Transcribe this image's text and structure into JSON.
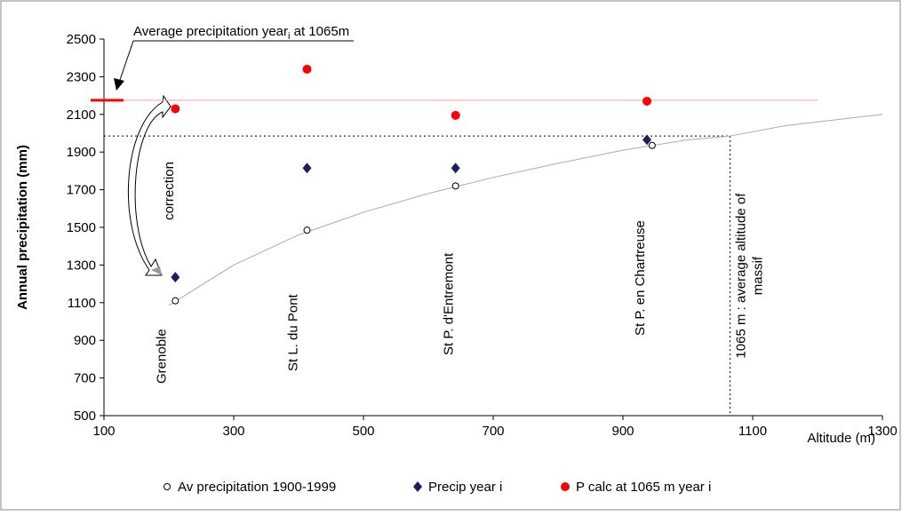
{
  "chart_data": {
    "type": "scatter",
    "annotation_title": {
      "text": "Average precipitation year",
      "subscript": "i",
      "suffix": " at 1065m"
    },
    "y_label": "Annual precipitation (mm)",
    "x_label": "Altitude (m)",
    "correction_label": "correction",
    "reference_label": [
      "1065 m : average altitude of",
      "massif"
    ],
    "reference_altitude": 1065,
    "reference_precip": 1985,
    "year_average_precip": 2175,
    "year_average_line_end": 1200,
    "xlim": [
      100,
      1300
    ],
    "xticks": [
      100,
      300,
      500,
      700,
      900,
      1100,
      1300
    ],
    "ylim": [
      500,
      2500
    ],
    "yticks": [
      500,
      700,
      900,
      1100,
      1300,
      1500,
      1700,
      1900,
      2100,
      2300,
      2500
    ],
    "grid": false,
    "stations": [
      {
        "label": "Grenoble",
        "x": 210
      },
      {
        "label": "St L. du Pont",
        "x": 413
      },
      {
        "label": "St P. d'Entremont",
        "x": 642
      },
      {
        "label": "St P. en Chartreuse",
        "x": 940
      }
    ],
    "trendline": {
      "x": [
        200,
        300,
        400,
        500,
        600,
        700,
        800,
        900,
        1000,
        1065,
        1150,
        1300
      ],
      "values": [
        1085,
        1300,
        1460,
        1580,
        1680,
        1765,
        1840,
        1910,
        1965,
        1985,
        2040,
        2100
      ]
    },
    "series": [
      {
        "name": "Av precipitation 1900-1999",
        "marker": "circle-open",
        "color": "#000000",
        "x": [
          210,
          413,
          642,
          945
        ],
        "values": [
          1110,
          1485,
          1720,
          1935
        ]
      },
      {
        "name": "Precip year i",
        "marker": "diamond",
        "color": "#1a1f5e",
        "x": [
          210,
          413,
          642,
          937
        ],
        "values": [
          1235,
          1815,
          1815,
          1965
        ]
      },
      {
        "name": "P calc at 1065 m year i",
        "marker": "circle",
        "color": "#ff0000",
        "x": [
          210,
          413,
          642,
          937
        ],
        "values": [
          2130,
          2340,
          2095,
          2170
        ]
      }
    ]
  }
}
